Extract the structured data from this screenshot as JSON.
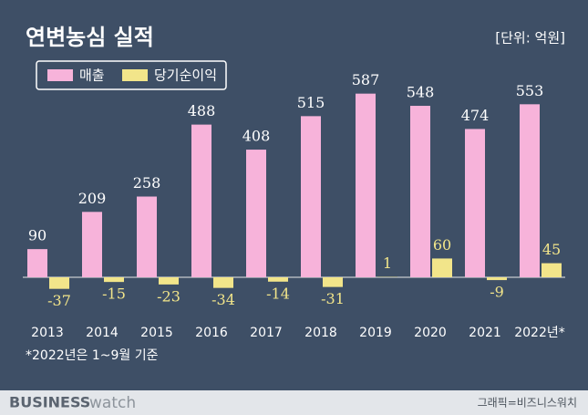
{
  "chart_data": {
    "type": "bar",
    "title": "연변농심 실적",
    "unit": "[단위: 억원]",
    "categories": [
      "2013",
      "2014",
      "2015",
      "2016",
      "2017",
      "2018",
      "2019",
      "2020",
      "2021",
      "2022년*"
    ],
    "series": [
      {
        "name": "매출",
        "color": "#f7b3da",
        "label_color": "#ffffff",
        "values": [
          90,
          209,
          258,
          488,
          408,
          515,
          587,
          548,
          474,
          553
        ]
      },
      {
        "name": "당기순이익",
        "color": "#f2e58a",
        "label_color": "#f2e58a",
        "values": [
          -37,
          -15,
          -23,
          -34,
          -14,
          -31,
          1,
          60,
          -9,
          45
        ]
      }
    ],
    "legend": "top-left",
    "grid": false,
    "footnote": "*2022년은 1~9월 기준",
    "brand_main": "BUSINESS",
    "brand_sub": "watch",
    "source": "그래픽=비즈니스워치"
  }
}
